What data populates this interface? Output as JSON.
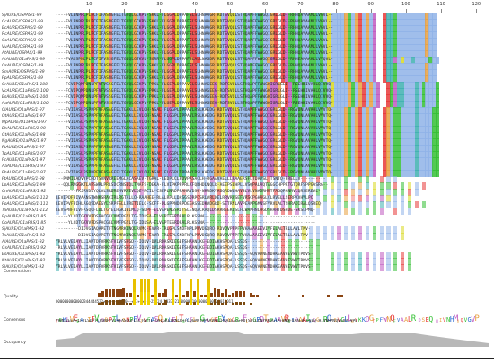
{
  "ruler": {
    "ticks": [
      "10",
      "20",
      "30",
      "40",
      "50",
      "60",
      "70",
      "80",
      "90",
      "100",
      "110",
      "120"
    ]
  },
  "sequences": [
    {
      "name": "SjAURE/OSPAS/1-99",
      "residues": "----FVLENPRLPLPCFIFASNGFELTGVQLGCKPV-SKKL-FLGGPLDPPAFSLSLHNAAGR-RDTSVQLLSTHQAPFFWWGQIGRLGLD--RHHQAVAAMLLVGVL--"
    },
    {
      "name": "CcAURE/OSPAS/1-99",
      "residues": "----FVLENPRLPLPCFIFASNGFELTGVQLGCKPV-SKKL-FLGGPLDPPAFSLSLHNAAGR-RDTSVQLLSTHQAPFFWWGQIGRLGLD--RHHQAVAAMLLVGVL--"
    },
    {
      "name": "EcAURE/OSPAS/1-99",
      "residues": "----FVLENPRLPLPCFIFASNGFELTGVQLGCKPV-SKKL-FLGGPLDPPAFSLSLHNAAGR-RDTSVQLLSTHQAPFFWWGQIGRLGLD--RHHQAVAAMLLVGVL--"
    },
    {
      "name": "RcAURE/OSPAS/1-99",
      "residues": "----FVLENPRLPLPCFIFASNGFELTGVQLGCKPV-SKKL-FLGGPLDPPAFSLSLHNAAGR-RDTSVQLLSTHQAPFFWWGQIGRLGLD--RHHQAVAAMLLVGVL--"
    },
    {
      "name": "CsAURE/OSPAS/1-99",
      "residues": "----FVLENPRLPLPCFIFASNGFELTGVQLGCKPV-SKKL-FLGGPLDPPAFSLSLHNAAGR-RDTSVQLLSTHQAPFFWWGQIGRLGLD--RHHQAVAAMLLVGVL--"
    },
    {
      "name": "VvAURE/OSPAS/1-99",
      "residues": "----FVLENPRLPLPCFIFASNGFELTGVQLGCKPV-SKKL-FLGGPLDPPAFSLSLHNAAGR-RDTSVQLLSTHQAPFFWWGQIGRLGLD--RHHQAVAAMLLVGVL--"
    },
    {
      "name": "AtAURE/OSPAS/1-99",
      "residues": "----FVLENPRLPLPCFIFASNGFELTGVQLGCKPV-SKKL-FLGGPLDPPAFSLSLHNAAGR-RDTSVQLLSTHQAPFFWWGQIGRLGLD--RHHQAVAAMLLVGVL--"
    },
    {
      "name": "AtAURE/O1aPAS/1-89",
      "residues": "----FVAGSPNLPLPCFIFVSSGFELTGLQLGTKVL-SGRR-FLGGPLDPPAFSLALLNAGDR-RDTSVQLLSTHQAPFFWWGQIGRLGLD--RHHEAPAAHLLVVQVL-"
    },
    {
      "name": "OsAURE/OSPAS/1-89",
      "residues": "----FVLENPRLPLPCFIFASNGFELTGVQLGCKPV-SKKL-FLGGPLDPPAFSLSLHNAAGR-RDTSVQLLSTHQAPFFWWGQIGRLGLD--RHHQAVAAMLLVGVL--"
    },
    {
      "name": "SmAURE/OSPAS/1-89",
      "residues": "----FVLENPRLPLPCFIFASNGFELTGVQLGCKPV-SKKL-FLGGPLDPPAFSLSLHNAAGR-RDTSVQLLSTHQAPFFWWGQIGRLGLD--RHHQAVAAMLLVGVL--"
    },
    {
      "name": "PpAURE/OSPAS/1-89",
      "residues": "----FVLENPRLPLPCFIFASNGFELTGVQLGCKPV-SKKL-FLGGPLDPPAFSLSLHNAAGR-RDTSVQLLSTHQAPFFWWGQIGRLGLD--RHHQAVAAMLLVGVL--"
    },
    {
      "name": "CrAURE/O1aPAS/1-100",
      "residues": "----FCVDPQMPDNLPFVFVSSGFELTGVQLGCKPV-PRKL-FLGEPLDPPAVSLSLHNAGEEG-RDTSVQLLSTHQAPFFWWGQIGRLGLD--RSEHHIVAHLQIVVQ-"
    },
    {
      "name": "VcAURE/O1aPAS/1-100",
      "residues": "----FCVDPQMPDNLPFVFVSSGFELTGVQLGCKPV-PRKL-FLGEPLDPPAVSLSLHNAGEEG-RDTSVQLLSTHQAPFFWWGQIGRLGLD--RSEHHIVAHLQIVVQ-"
    },
    {
      "name": "EsAURE/O1aPAS/1-100",
      "residues": "----FCVDPQMPDNLPFVFVSSGFELTGVQLGCKPV-PRKL-FLGEPLDPPAVSLSLHNAGEEG-RDTSVQLLSTHQAPFFWWGQIGRLGLD--RSEHHIVAHLQIVVQ-"
    },
    {
      "name": "AaAURE/O1aPAS/1-100",
      "residues": "----FCVDPQMPDNLPFVFVSSGFELTGVQLGCKPV-PRKL-FLGEPLDPPAVSLSLHNAGEEG-RDTSVQLLSTHQAPFFWWGQIGRLGLD--RSEHHIVAHLQIVVQ-"
    },
    {
      "name": "ClAURE/O1aPAS/1-97",
      "residues": "----FVIDASLPSPNPFVFASAGFELTGAKLLEVLQH-NSAL-FLGGPLDPPAVLRSLKAEDG-RDTSVQLLSTHQAPFFWWGQIGRLGLD--RGVQNLAVAHLVVVTQ-"
    },
    {
      "name": "OtAURE/O1aPAS/1-97",
      "residues": "----FVIDASLPSPNPFVFASAGFELTGAKLLEVLQH-NSAL-FLGGPLDPPAVLRSLKAEDG-RDTSVQLLSTHQAPFFWWGQIGRLGLD--RGVQNLAVAHLVVVTQ-"
    },
    {
      "name": "MpAURE/O1aPAS/1-97",
      "residues": "----FVIDASLPSPNPFVFASAGFELTGAKLLEVLQH-NSAL-FLGGPLDPPAVLRSLKAEDG-RDTSVQLLSTHQAPFFWWGQIGRLGLD--RGVQNLAVAHLVVVTQ-"
    },
    {
      "name": "EhAURE/O1aPAS/1-98",
      "residues": "----FVIDASLPSPNPFVFASAGFELTGAKLLEVLQH-NSAL-FLGGPLDPPAVLRSLKAEDG-RDTSVQLLSTHQAPFFWWGQIGRLGLD--RGVQNLAVAHLVVVTQ-"
    },
    {
      "name": "GtAURE/O1aPAS/1-98",
      "residues": "----FVIDASLPSPNPFVFASAGFELTGAKLLEVLQH-NSAL-FLGGPLDPPAVLRSLKAEDG-RDTSVQLLSTHQAPFFWWGQIGRLGLD--RGVQNLAVAHLVVVTQ-"
    },
    {
      "name": "NgAURE/O1aPAS/1-97",
      "residues": "----FVIDASLPSPNPFVFASAGFELTGAKLLEVLQH-NSAL-FLGGPLDPPAVLRSLKAEDG-RDTSVQLLSTHQAPFFWWGQIGRLGLD--RGVQNLAVAHLVVVTQ-"
    },
    {
      "name": "PtAURE/O1aPAS/1-97",
      "residues": "----FVIDASLPSPNPFVFASAGFELTGAKLLEVLQH-NSAL-FLGGPLDPPAVLRSLKAEDG-RDTSVQLLSTHQAPFFWWGQIGRLGLD--RGVQNLAVAHLVVVTQ-"
    },
    {
      "name": "TpAURE/O1aPAS/1-97",
      "residues": "----FVIDASLPSPNPFVFASAGFELTGAKLLEVLQH-NSAL-FLGGPLDPPAVLRSLKAEDG-RDTSVQLLSTHQAPFFWWGQIGRLGLD--RGVQNLAVAHLVVVTQ-"
    },
    {
      "name": "FcAURE/O1aPAS/1-97",
      "residues": "----FVIDASLPSPNPFVFASAGFELTGAKLLEVLQH-NSAL-FLGGPLDPPAVLRSLKAEDG-RDTSVQLLSTHQAPFFWWGQIGRLGLD--RGVQNLAVAHLVVVTQ-"
    },
    {
      "name": "AaAURE/O1aPAS/1-97",
      "residues": "----FVIDASLPSPNPFVFASAGFELTGAKLLEVLQH-NSAL-FLGGPLDPPAVLRSLKAEDG-RDTSVQLLSTHQAPFFWWGQIGRLGLD--RGVQNLAVAHLVVVTQ-"
    },
    {
      "name": "PhAURE/O1aPAS/1-97",
      "residues": "----FVIDASLPSPNPFVFASAGFELTGAKLLEVLQH-NSAL-FLGGPLDPPAVLRSLKAEDG-RDTSVQLLSTHQAPFFWWGQIGRLGLD--RGVQNLAVAHLVVVTQ-"
    },
    {
      "name": "PtAURE/O1aPAS/1-98",
      "residues": "---PNMILADVYPCRDTSVNVRREEMGLACASAEV-TGRAL-LEDPLCLPDVPASACLH-RGAAVAELLLRAAERSFLTDAVSL-TSNTQ-FRELLV----------"
    },
    {
      "name": "LpAURE/O1aPAS/1-99",
      "residues": "---QQLRMGGKTLAPSWRLPRLSDCRNSLQLTMAFS-DEKA-FLVIPKPPPRLKFQRHDLNQLR-AEEPSLHPLLVSQPALAQTAGGCHPPRTGTQRFSPPGASRG--"
    },
    {
      "name": "CnAURE/O1aPAS/1-92",
      "residues": "--------FKJRVDLYQLVLSRDREHVRAEVLQE-RCIL-CSEPLNRDPRAHRVDSG-NHRDKVAGQRDWLHAVSLVLVNADRHGTFAGQPANHVLQRSEREVL-"
    },
    {
      "name": "LpAURE/O1aPAS/1-112",
      "residues": "LEVIPDFPIVAANSTWNKSRACIRLRGTALLQ-RAAHEE-RLALRPLLDASGSDRPCSRLVRLDELRRVRHSEFVRSCPGHAGLCLRVELLSERPKVHVLPC"
    },
    {
      "name": "PoAURE/O1aPAS/1-111",
      "residues": "LEVIPVFPIHLAGQSDAEGYLSRPFSLLFRETIELQ-SCFF-DLGPPNDRPDEGASSEDKVDGRD-SETRNLAVPEAPPGMNSFVRVLALTSHRADIRALQSREQ-"
    },
    {
      "name": "TaAURE/O1aPAS/1-112",
      "residues": "LEVSPNFPIVFASQGFLDLTGYELHGKIEIMLQ-SDPF-ELVAPENGSRDTSLENQACRAQLDSRRREEKLSLHLWAPHNLHGDSHAHTDSHDE-SKSLPMQ-"
    },
    {
      "name": "BpAURE/O1aPAS/1-85",
      "residues": "-----YLCDTGKVVFDSPACGELVMFPGSLTG-IDLSA-ELVAPTESRDFALRLKSSNA--------------------------------------------"
    },
    {
      "name": "CoAURE/O1aPAS/1-85",
      "residues": "-----YLCDTGKVVFDSPACGELVMFPGSLTG-IDLSA-ELVAPTESRDFALRLKSSNA--------------------------------------------"
    },
    {
      "name": "SjAURE/O1aPAS/1-92",
      "residues": "---------DIDVGIAQAPETFTNGMRKLNQLRVMG-EVVR-IRLGPLSNDFNPLPDVDGQRQ-RDVQVPPPFPVHAAAAEEVIVFELALTRLLAVLTPV-"
    },
    {
      "name": "TaAURE/O1aPAS/1-92",
      "residues": "---------DIDVGIAQAPETFTNGMRKLNQLRVMG-EVVR-IRLGPLSNDFNPLPDVDGQRQ-RDVQVPPPFPVHAAAAEEVIVFELALTRLLAVLTPV-"
    },
    {
      "name": "AlAURE/O1aPAS/1-92",
      "residues": "YRLVLVEDAYLLIANTDFVRKSFVIVFSHGD--IQLV-DVLRDASKIEGEFSHAANLKG-EDIAKHSPQA-LSSQS--------------------------"
    },
    {
      "name": "GsAURE/O1aPAS/1-92",
      "residues": "-RLVLVEDAYLLIANTDFVRKSFVIVFSHGD--IQLV-DVLRDASKIEGEFSHAANLKG-EDIAKHSPQA-LSSQS--------------------------"
    },
    {
      "name": "EsAURE/O1aPAS/1-92",
      "residues": "YRLVLVEDAYLLIANTDFVRKSFVIVFSHGD--IQLV-DVLRDASKIEGEFSHAANLKG-EDIAKHSPQA-LSSQS-GQVAVNEMDHKEAVHEVWVTPRVS-"
    },
    {
      "name": "NtAURE/O1aPAS/1-92",
      "residues": "YRLVLVEDAYLLIANTDFVRKSFVIVFSHGD--IQLV-DVLRDASKIEGEFSHAANLKG-EDIAKHSPQA-LSSQS-GQVAVNEMDHKEAVHEVWVTPRVS-"
    },
    {
      "name": "SlAURE/O1aPAS/1-92",
      "residues": "YRLVLVEDAYLLIANTDFVRKSFVIVFSHGD--IQLV-DVLRDASKIEGEFSHAANLKG-EDIAKHSPQA-LSSQS-GQVAVNEMDHKEAVHEVWVTPRVS-"
    }
  ],
  "annotation_rows": {
    "conservation_label": "Conservation",
    "quality_label": "Quality",
    "consensus_label": "Consensus",
    "occupancy_label": "Occupancy",
    "conservation_digits": "0000000000002344444522+-+++-+2240+-+-3+3+--+25424-23330211000001000000100000010011",
    "consensus_sequence": "VRMLVEEA+IFVLSDPTLPDNPFVIVFASQGFLELTGYTL+GVLGKEYRNCR+FLQGPDTDPAAVRKIRAAIEGG+ROTSVCLLNYKKDGTPFWNQFVAALR-DSEQ-HIVNHMVQVGVPLVPE"
  },
  "colors": {
    "hydrophobic": "#8fb3e8",
    "positive": "#e83a3a",
    "negative": "#c05ac0",
    "polar": "#35c035",
    "glycine": "#e8a040",
    "proline": "#d8d820",
    "aromatic": "#40b0b0",
    "cys": "#f08080",
    "conservation_bar": "#8b4513",
    "conservation_high": "#e8c000",
    "occupancy": "#888888"
  }
}
